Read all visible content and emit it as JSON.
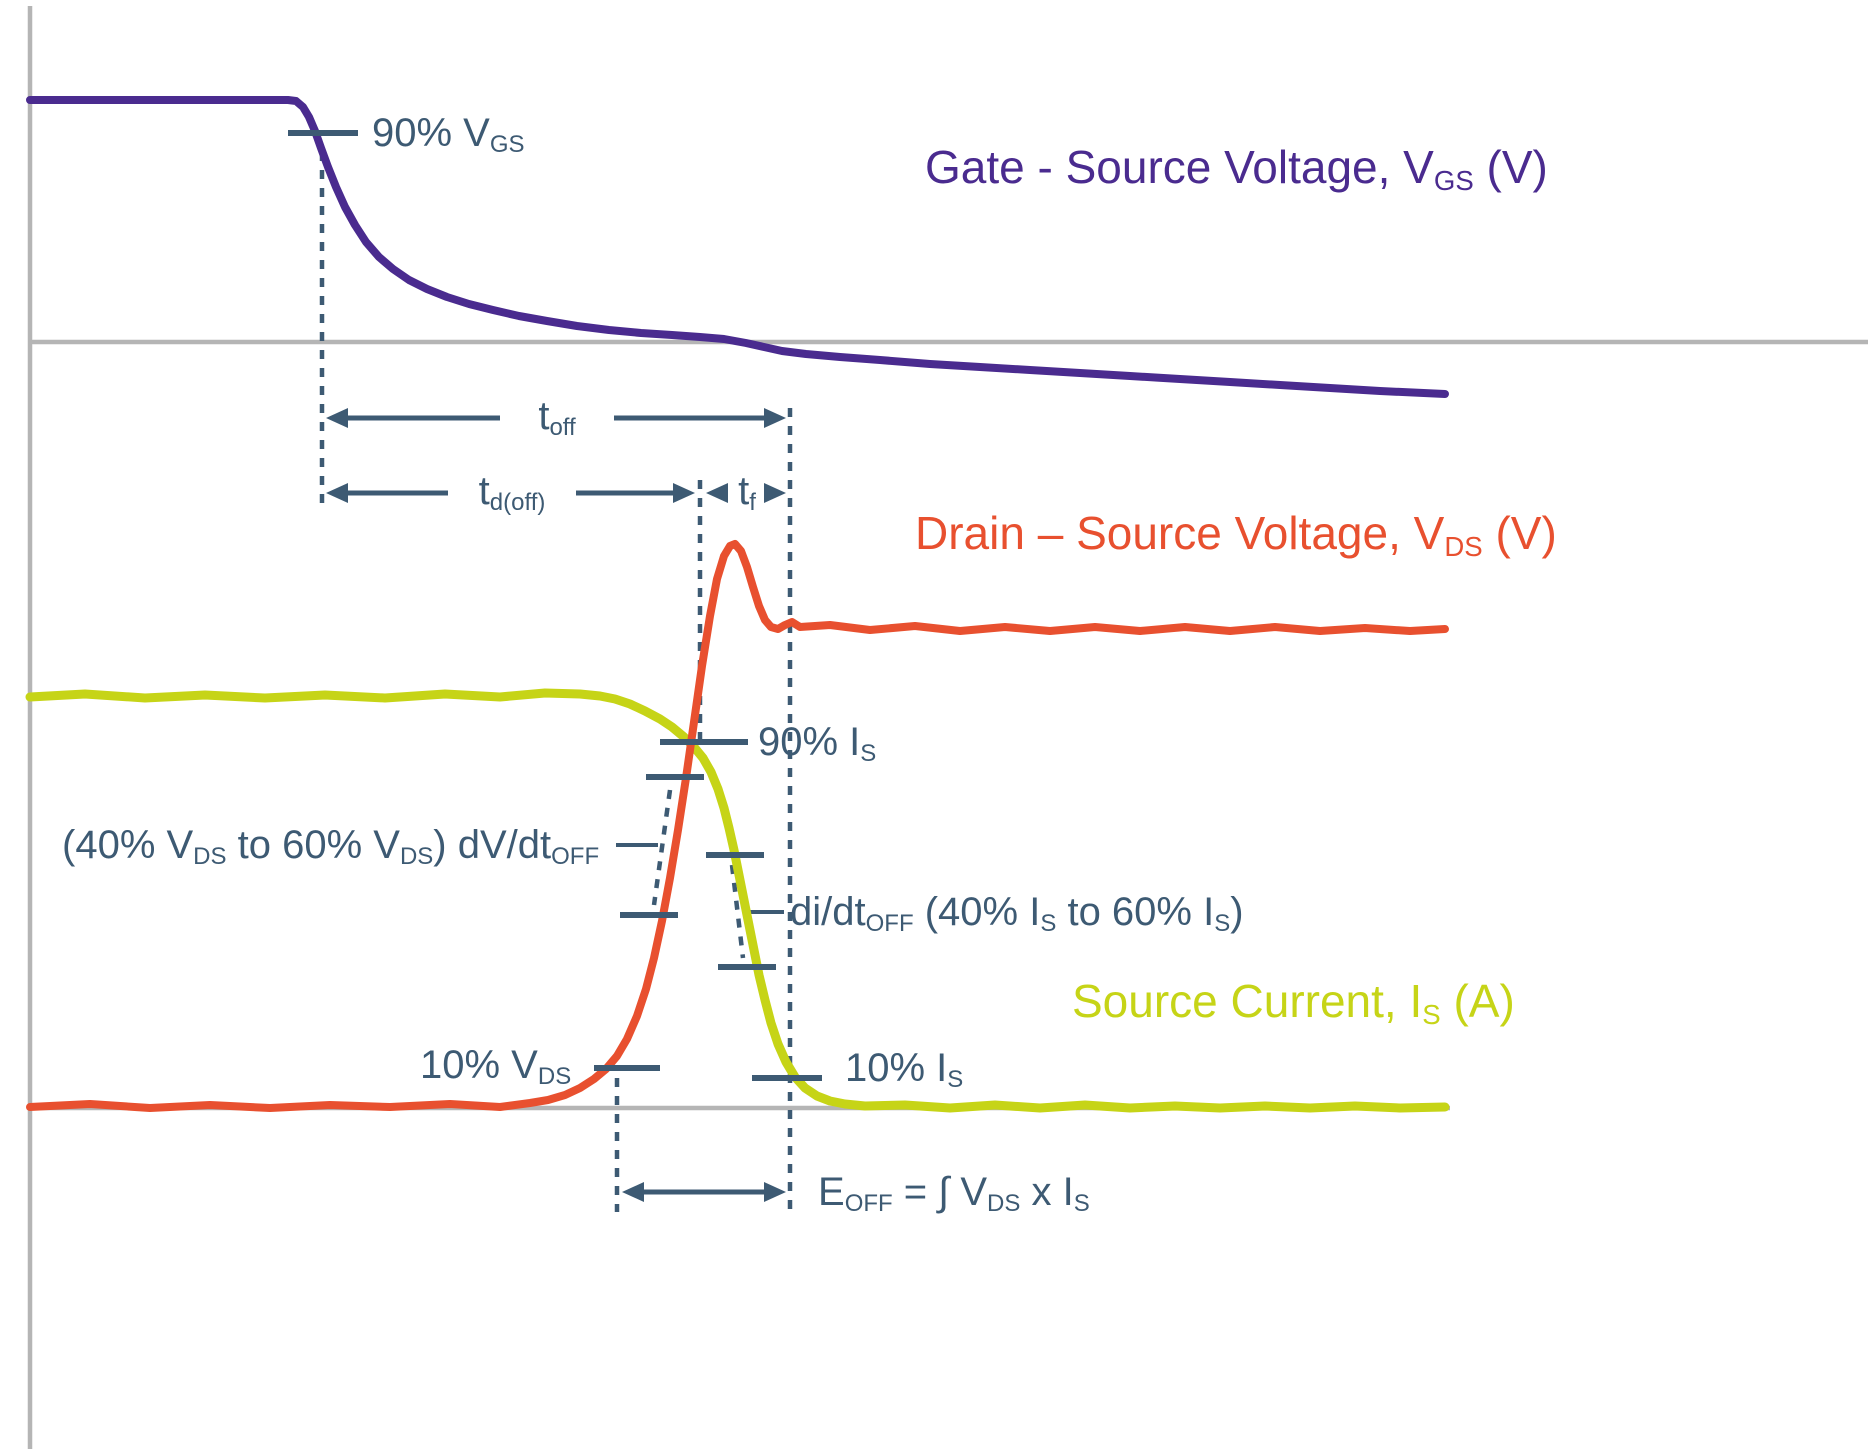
{
  "colors": {
    "vgs": "#4a2b8f",
    "vds": "#e8502f",
    "is": "#c6d417",
    "anno": "#3d5a73",
    "axis": "#b5b5b5",
    "background": "#ffffff"
  },
  "legend": {
    "vgs": {
      "text": "Gate - Source Voltage, VGS (V)",
      "parts": [
        {
          "t": "Gate - Source Voltage, V"
        },
        {
          "t": "GS",
          "sub": true
        },
        {
          "t": " (V)"
        }
      ]
    },
    "vds": {
      "text": "Drain – Source Voltage, VDS (V)",
      "parts": [
        {
          "t": "Drain – Source Voltage, V"
        },
        {
          "t": "DS",
          "sub": true
        },
        {
          "t": " (V)"
        }
      ]
    },
    "is": {
      "text": "Source Current, IS (A)",
      "parts": [
        {
          "t": "Source Current, I"
        },
        {
          "t": "S",
          "sub": true
        },
        {
          "t": " (A)"
        }
      ]
    }
  },
  "annotations": {
    "vgs90": {
      "text": "90% VGS",
      "parts": [
        {
          "t": "90% V"
        },
        {
          "t": "GS",
          "sub": true
        }
      ]
    },
    "toff": {
      "text": "toff",
      "parts": [
        {
          "t": "t"
        },
        {
          "t": "off",
          "sub": true
        }
      ]
    },
    "tdoff": {
      "text": "td(off)",
      "parts": [
        {
          "t": "t"
        },
        {
          "t": "d(off)",
          "sub": true
        }
      ]
    },
    "tf": {
      "text": "tf",
      "parts": [
        {
          "t": "t"
        },
        {
          "t": "f",
          "sub": true
        }
      ]
    },
    "is90": {
      "text": "90% IS",
      "parts": [
        {
          "t": "90% I"
        },
        {
          "t": "S",
          "sub": true
        }
      ]
    },
    "dvdt": {
      "text": "(40% VDS to 60% VDS) dV/dtOFF",
      "parts": [
        {
          "t": "(40% V"
        },
        {
          "t": "DS",
          "sub": true
        },
        {
          "t": " to 60% V"
        },
        {
          "t": "DS",
          "sub": true
        },
        {
          "t": ") dV/dt"
        },
        {
          "t": "OFF",
          "sub": true
        }
      ]
    },
    "didt": {
      "text": "di/dtOFF (40% IS to 60% IS)",
      "parts": [
        {
          "t": "di/dt"
        },
        {
          "t": "OFF",
          "sub": true
        },
        {
          "t": " (40% I"
        },
        {
          "t": "S",
          "sub": true
        },
        {
          "t": " to 60% I"
        },
        {
          "t": "S",
          "sub": true
        },
        {
          "t": ")"
        }
      ]
    },
    "vds10": {
      "text": "10% VDS",
      "parts": [
        {
          "t": "10% V"
        },
        {
          "t": "DS",
          "sub": true
        }
      ]
    },
    "is10": {
      "text": "10% IS",
      "parts": [
        {
          "t": "10% I"
        },
        {
          "t": "S",
          "sub": true
        }
      ]
    },
    "eoff": {
      "text": "EOFF = ∫ VDS x IS",
      "parts": [
        {
          "t": "E"
        },
        {
          "t": "OFF",
          "sub": true
        },
        {
          "t": " = ∫  V"
        },
        {
          "t": "DS",
          "sub": true
        },
        {
          "t": " x I"
        },
        {
          "t": "S",
          "sub": true
        }
      ]
    }
  },
  "figure": {
    "type": "waveform-timing-diagram",
    "subject": "MOSFET turn-off switching transition",
    "series": [
      {
        "name": "Gate - Source Voltage, VGS (V)",
        "color_key": "vgs"
      },
      {
        "name": "Drain – Source Voltage, VDS (V)",
        "color_key": "vds"
      },
      {
        "name": "Source Current, IS (A)",
        "color_key": "is"
      }
    ],
    "timing_markers": [
      "90% VGS",
      "toff",
      "td(off)",
      "tf",
      "90% IS",
      "10% VDS",
      "10% IS"
    ],
    "slope_markers": [
      "(40% VDS to 60% VDS) dV/dtOFF",
      "di/dtOFF (40% IS to 60% IS)"
    ],
    "energy_marker": "EOFF = ∫ VDS x IS"
  }
}
